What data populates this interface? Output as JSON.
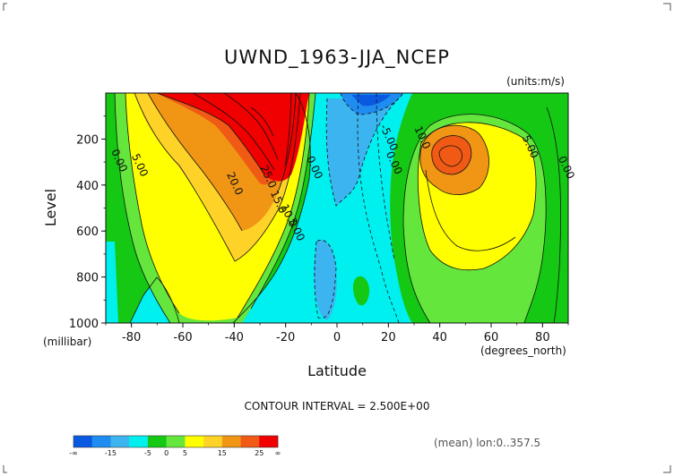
{
  "chart_data": {
    "type": "contour",
    "title": "UWND_1963-JJA_NCEP",
    "units": "(units:m/s)",
    "xlabel": "Latitude",
    "ylabel": "Level",
    "x_units": "(degrees_north)",
    "y_units": "(millibar)",
    "xlim": [
      -90,
      90
    ],
    "ylim": [
      1000,
      0
    ],
    "x_ticks": [
      -80,
      -60,
      -40,
      -20,
      0,
      20,
      40,
      60,
      80
    ],
    "y_ticks": [
      200,
      400,
      600,
      800,
      1000
    ],
    "contour_interval": "CONTOUR INTERVAL = 2.500E+00",
    "footer": "(mean) lon:0..357.5",
    "contour_labels": [
      {
        "text": "0.00",
        "x": -86,
        "y": 300
      },
      {
        "text": "5.00",
        "x": -78,
        "y": 320
      },
      {
        "text": "20.0",
        "x": -41,
        "y": 400
      },
      {
        "text": "25.0",
        "x": -28,
        "y": 370
      },
      {
        "text": "15.0",
        "x": -24,
        "y": 480
      },
      {
        "text": "10.0",
        "x": -20,
        "y": 540
      },
      {
        "text": "5.00",
        "x": -17,
        "y": 600
      },
      {
        "text": "0.00",
        "x": -10,
        "y": 330
      },
      {
        "text": "-5.00",
        "x": 19,
        "y": 200
      },
      {
        "text": "0.00",
        "x": 21,
        "y": 310
      },
      {
        "text": "10.0",
        "x": 32,
        "y": 200
      },
      {
        "text": "5.00",
        "x": 74,
        "y": 240
      },
      {
        "text": "0.00",
        "x": 88,
        "y": 330
      }
    ],
    "colorbar": {
      "bins": [
        {
          "color": "#0a5ae1"
        },
        {
          "color": "#1e8cf0"
        },
        {
          "color": "#3cb4f0"
        },
        {
          "color": "#00f0f0"
        },
        {
          "color": "#14c814"
        },
        {
          "color": "#64e63c"
        },
        {
          "color": "#ffff00"
        },
        {
          "color": "#ffd228"
        },
        {
          "color": "#f09614"
        },
        {
          "color": "#f05a14"
        },
        {
          "color": "#f00000"
        }
      ],
      "labels": [
        {
          "text": "-∞",
          "index": 0
        },
        {
          "text": "-15",
          "index": 2
        },
        {
          "text": "-5",
          "index": 4
        },
        {
          "text": "0",
          "index": 5
        },
        {
          "text": "5",
          "index": 6
        },
        {
          "text": "15",
          "index": 8
        },
        {
          "text": "25",
          "index": 10
        },
        {
          "text": "∞",
          "index": 11
        }
      ]
    }
  }
}
